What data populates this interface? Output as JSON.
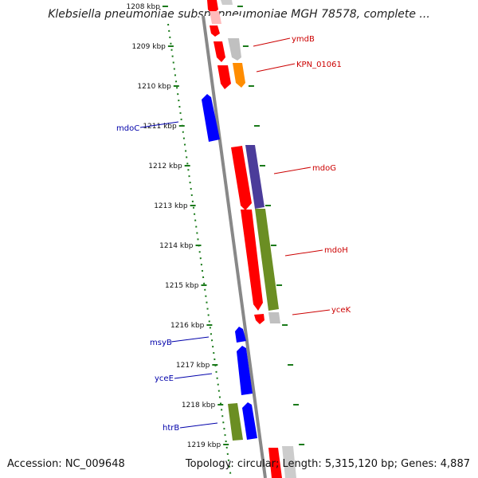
{
  "title": "Klebsiella pneumoniae subsp. pneumoniae MGH 78578, complete ...",
  "footer": {
    "accession": "Accession: NC_009648",
    "stats": "Topology: circular; Length: 5,315,120 bp; Genes: 4,887"
  },
  "colors": {
    "forward_red": "#ff0000",
    "reverse_blue": "#0000ff",
    "olive": "#6b8e23",
    "purple": "#4b3c9a",
    "orange": "#ff8c00",
    "gray": "#bbbbbb",
    "backbone": "#888888",
    "tick_green": "#1a7a1a",
    "label_red": "#cc0000",
    "label_blue": "#0000aa"
  },
  "ticks": [
    "1208 kbp",
    "1209 kbp",
    "1210 kbp",
    "1211 kbp",
    "1212 kbp",
    "1213 kbp",
    "1214 kbp",
    "1215 kbp",
    "1216 kbp",
    "1217 kbp",
    "1218 kbp",
    "1219 kbp"
  ],
  "gene_labels": {
    "ymdB": "ymdB",
    "kpn": "KPN_01061",
    "mdoC": "mdoC",
    "mdoG": "mdoG",
    "mdoH": "mdoH",
    "yceK": "yceK",
    "msyB": "msyB",
    "yceE": "yceE",
    "htrB": "htrB"
  }
}
